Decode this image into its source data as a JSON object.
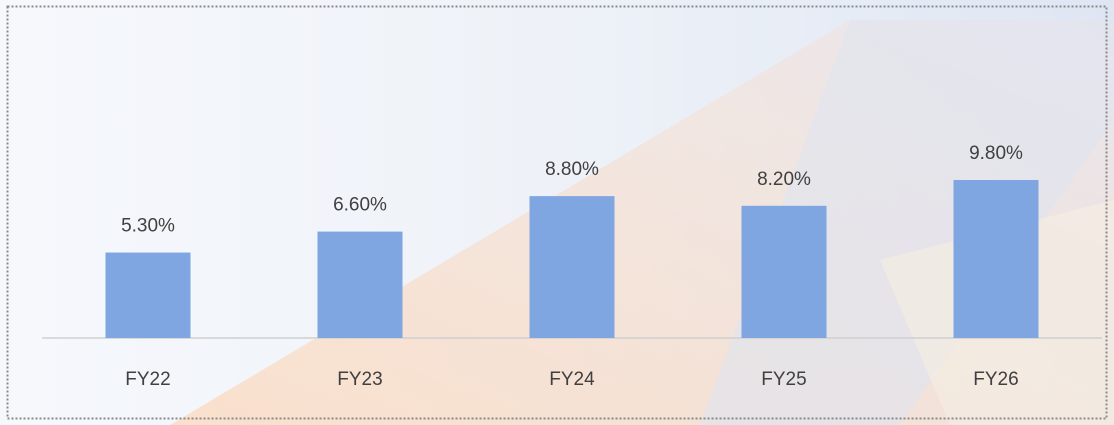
{
  "chart_data": {
    "type": "bar",
    "categories": [
      "FY22",
      "FY23",
      "FY24",
      "FY25",
      "FY26"
    ],
    "values": [
      5.3,
      6.6,
      8.8,
      8.2,
      9.8
    ],
    "value_labels": [
      "5.30%",
      "6.60%",
      "8.80%",
      "8.20%",
      "9.80%"
    ],
    "color": "#7fa6e0"
  }
}
